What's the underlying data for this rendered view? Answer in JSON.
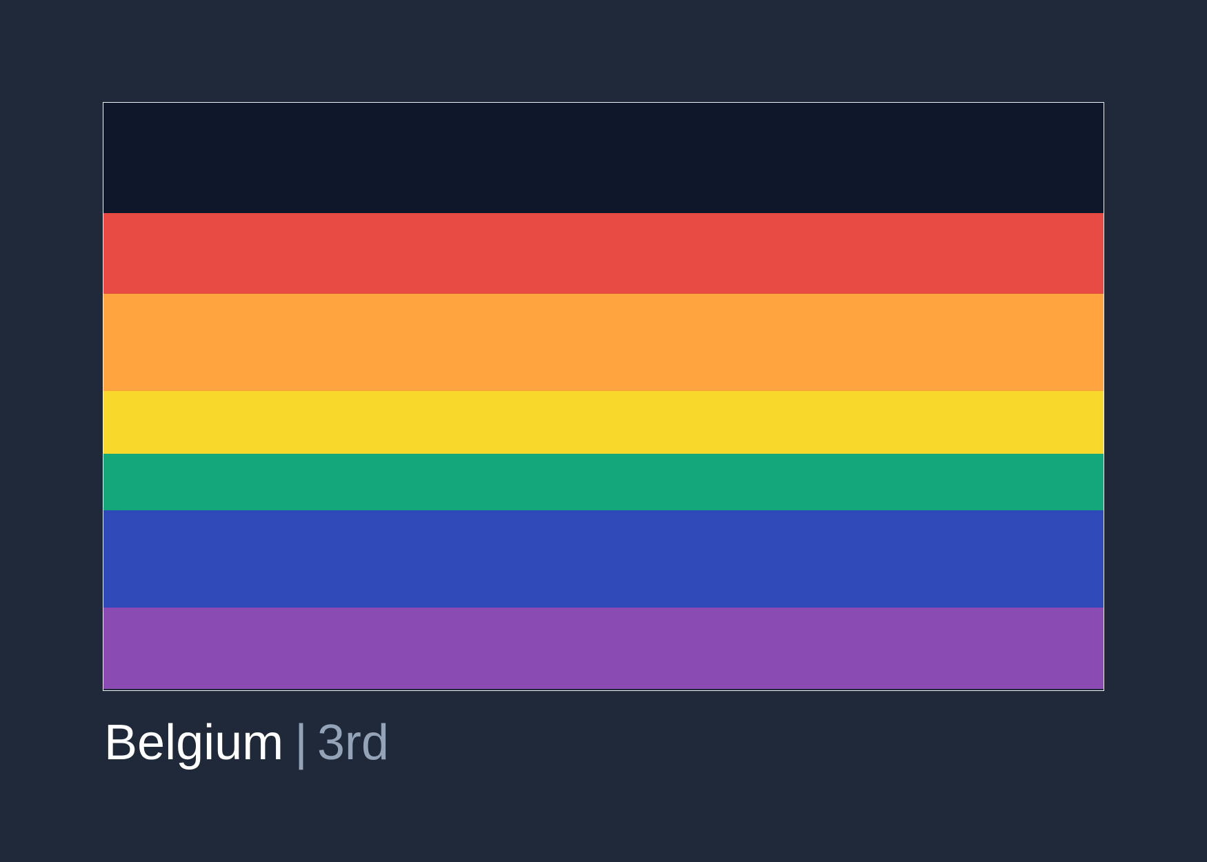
{
  "flag": {
    "stripes": [
      {
        "name": "black",
        "color": "#0f172a"
      },
      {
        "name": "red",
        "color": "#e84b43"
      },
      {
        "name": "orange",
        "color": "#ffa43e"
      },
      {
        "name": "yellow",
        "color": "#f8d82a"
      },
      {
        "name": "green",
        "color": "#13a77a"
      },
      {
        "name": "blue",
        "color": "#2f4ab8"
      },
      {
        "name": "purple",
        "color": "#8a4bb3"
      }
    ]
  },
  "caption": {
    "country": "Belgium",
    "separator": "|",
    "rank": "3rd"
  },
  "colors": {
    "background": "#1f293a",
    "country_text": "#ffffff",
    "rank_text": "#94a3b8",
    "flag_border": "#f1f5f9"
  }
}
